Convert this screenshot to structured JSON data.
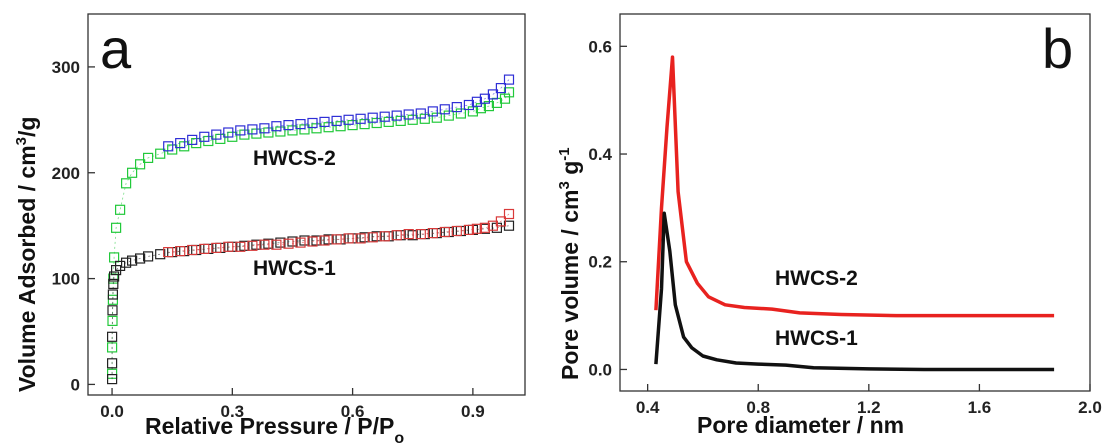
{
  "chart_data": [
    {
      "panel_label": "a",
      "type": "scatter",
      "xlabel": "Relative Pressure / P/P",
      "xlabel_sub": "o",
      "ylabel": "Volume Adsorbed / cm",
      "ylabel_sup": "3",
      "ylabel_tail": "/g",
      "xlim": [
        -0.06,
        1.03
      ],
      "ylim": [
        -10,
        350
      ],
      "xticks": [
        0.0,
        0.3,
        0.6,
        0.9
      ],
      "xtick_labels": [
        "0.0",
        "0.3",
        "0.6",
        "0.9"
      ],
      "yticks": [
        0,
        100,
        200,
        300
      ],
      "ytick_labels": [
        "0",
        "100",
        "200",
        "300"
      ],
      "grid": false,
      "annotations": [
        {
          "text": "HWCS-2",
          "x": 0.48,
          "y": 188
        },
        {
          "text": "HWCS-1",
          "x": 0.48,
          "y": 92
        }
      ],
      "series": [
        {
          "color": "#22c93a",
          "marker": "square-open",
          "x": [
            0.0,
            0.0,
            0.001,
            0.002,
            0.003,
            0.005,
            0.01,
            0.02,
            0.035,
            0.05,
            0.07,
            0.09,
            0.12,
            0.15,
            0.18,
            0.21,
            0.24,
            0.27,
            0.3,
            0.33,
            0.36,
            0.39,
            0.42,
            0.45,
            0.48,
            0.51,
            0.54,
            0.57,
            0.6,
            0.63,
            0.66,
            0.69,
            0.72,
            0.75,
            0.78,
            0.81,
            0.84,
            0.87,
            0.9,
            0.92,
            0.94,
            0.96,
            0.98,
            0.99
          ],
          "y": [
            10,
            35,
            60,
            80,
            100,
            120,
            148,
            165,
            190,
            200,
            208,
            214,
            218,
            222,
            225,
            228,
            230,
            232,
            234,
            236,
            237,
            238,
            239,
            240,
            241,
            242,
            243,
            244,
            245,
            246,
            247,
            248,
            249,
            250,
            251,
            252,
            254,
            256,
            258,
            261,
            263,
            266,
            270,
            276
          ]
        },
        {
          "color": "#2f2fd6",
          "marker": "square-open",
          "x": [
            0.99,
            0.97,
            0.95,
            0.93,
            0.91,
            0.89,
            0.86,
            0.83,
            0.8,
            0.77,
            0.74,
            0.71,
            0.68,
            0.65,
            0.62,
            0.59,
            0.56,
            0.53,
            0.5,
            0.47,
            0.44,
            0.41,
            0.38,
            0.35,
            0.32,
            0.29,
            0.26,
            0.23,
            0.2,
            0.17,
            0.14
          ],
          "y": [
            288,
            280,
            274,
            270,
            267,
            264,
            262,
            260,
            258,
            256,
            255,
            254,
            253,
            252,
            251,
            250,
            249,
            248,
            247,
            246,
            245,
            244,
            242,
            241,
            240,
            238,
            236,
            234,
            231,
            228,
            225
          ]
        },
        {
          "color": "#222222",
          "marker": "square-open",
          "x": [
            0.0,
            0.0,
            0.0,
            0.001,
            0.002,
            0.003,
            0.005,
            0.01,
            0.02,
            0.035,
            0.05,
            0.07,
            0.09,
            0.12,
            0.15,
            0.18,
            0.21,
            0.24,
            0.27,
            0.3,
            0.33,
            0.36,
            0.39,
            0.42,
            0.45,
            0.48,
            0.51,
            0.54,
            0.57,
            0.6,
            0.63,
            0.66,
            0.69,
            0.72,
            0.75,
            0.78,
            0.81,
            0.84,
            0.87,
            0.9,
            0.93,
            0.96,
            0.99
          ],
          "y": [
            5,
            20,
            45,
            70,
            85,
            95,
            102,
            108,
            112,
            115,
            117,
            119,
            121,
            123,
            125,
            126,
            127,
            128,
            129,
            130,
            131,
            132,
            133,
            134,
            135,
            136,
            136,
            137,
            137,
            138,
            139,
            140,
            140,
            141,
            141,
            142,
            143,
            144,
            145,
            146,
            147,
            148,
            150
          ]
        },
        {
          "color": "#d93a3a",
          "marker": "square-open",
          "x": [
            0.99,
            0.97,
            0.95,
            0.93,
            0.91,
            0.89,
            0.86,
            0.83,
            0.8,
            0.77,
            0.74,
            0.71,
            0.68,
            0.65,
            0.62,
            0.59,
            0.56,
            0.53,
            0.5,
            0.47,
            0.44,
            0.41,
            0.38,
            0.35,
            0.32,
            0.29,
            0.26,
            0.23,
            0.2,
            0.17,
            0.14
          ],
          "y": [
            161,
            154,
            150,
            148,
            147,
            146,
            145,
            144,
            143,
            142,
            142,
            141,
            140,
            139,
            138,
            138,
            137,
            136,
            135,
            134,
            133,
            132,
            132,
            131,
            130,
            130,
            129,
            128,
            127,
            126,
            125
          ]
        }
      ]
    },
    {
      "panel_label": "b",
      "type": "line",
      "xlabel": "Pore diameter / nm",
      "ylabel": "Pore volume / cm",
      "ylabel_sup": "3",
      "ylabel_mid": " g",
      "ylabel_sup2": "-1",
      "xlim": [
        0.3,
        2.0
      ],
      "ylim": [
        -0.04,
        0.66
      ],
      "xticks": [
        0.4,
        0.8,
        1.2,
        1.6,
        2.0
      ],
      "xtick_labels": [
        "0.4",
        "0.8",
        "1.2",
        "1.6",
        "2.0"
      ],
      "yticks": [
        0.0,
        0.2,
        0.4,
        0.6
      ],
      "ytick_labels": [
        "0.0",
        "0.2",
        "0.4",
        "0.6"
      ],
      "grid": false,
      "annotations": [
        {
          "text": "HWCS-2",
          "x": 0.8,
          "y": 0.14
        },
        {
          "text": "HWCS-1",
          "x": 0.8,
          "y": 0.035
        }
      ],
      "series": [
        {
          "color": "#e8221f",
          "x": [
            0.43,
            0.45,
            0.47,
            0.49,
            0.51,
            0.54,
            0.58,
            0.62,
            0.68,
            0.75,
            0.85,
            0.95,
            1.1,
            1.3,
            1.5,
            1.7,
            1.87
          ],
          "y": [
            0.11,
            0.3,
            0.45,
            0.58,
            0.33,
            0.2,
            0.16,
            0.135,
            0.12,
            0.115,
            0.112,
            0.105,
            0.102,
            0.1,
            0.1,
            0.1,
            0.1
          ]
        },
        {
          "color": "#111111",
          "x": [
            0.43,
            0.45,
            0.46,
            0.48,
            0.5,
            0.53,
            0.56,
            0.6,
            0.65,
            0.72,
            0.8,
            0.9,
            1.0,
            1.2,
            1.4,
            1.6,
            1.87
          ],
          "y": [
            0.01,
            0.15,
            0.29,
            0.22,
            0.12,
            0.06,
            0.04,
            0.025,
            0.018,
            0.012,
            0.01,
            0.008,
            0.003,
            0.001,
            0.0,
            0.0,
            0.0
          ]
        }
      ]
    }
  ]
}
